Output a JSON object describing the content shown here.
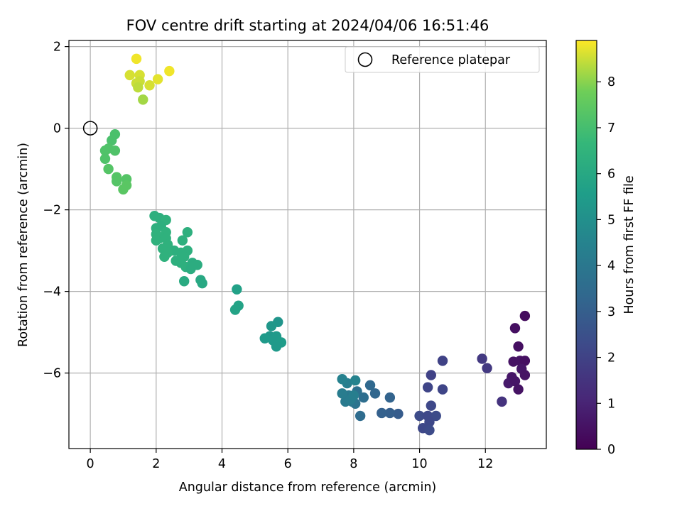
{
  "chart_data": {
    "type": "scatter",
    "title": "FOV centre drift starting at 2024/04/06 16:51:46",
    "xlabel": "Angular distance from reference (arcmin)",
    "ylabel": "Rotation from reference (arcmin)",
    "xlim": [
      -0.65,
      13.85
    ],
    "ylim": [
      -7.85,
      2.15
    ],
    "xticks": [
      0,
      2,
      4,
      6,
      8,
      10,
      12
    ],
    "yticks": [
      2,
      0,
      -2,
      -4,
      -6
    ],
    "grid": true,
    "legend": {
      "placement": "top-right",
      "entries": [
        "Reference platepar"
      ]
    },
    "reference_point": {
      "x": 0,
      "y": 0
    },
    "colorbar": {
      "label": "Hours from first FF file",
      "range": [
        0,
        8.9
      ],
      "ticks": [
        0,
        1,
        2,
        3,
        4,
        5,
        6,
        7,
        8
      ],
      "colormap": "viridis"
    },
    "series": [
      {
        "points": [
          {
            "x": 13.2,
            "y": -4.6,
            "h": 0.3
          },
          {
            "x": 12.9,
            "y": -4.9,
            "h": 0.4
          },
          {
            "x": 13.0,
            "y": -5.35,
            "h": 0.4
          },
          {
            "x": 12.85,
            "y": -5.72,
            "h": 0.5
          },
          {
            "x": 13.05,
            "y": -5.7,
            "h": 0.5
          },
          {
            "x": 13.2,
            "y": -5.7,
            "h": 0.4
          },
          {
            "x": 13.1,
            "y": -5.9,
            "h": 0.6
          },
          {
            "x": 13.2,
            "y": -6.05,
            "h": 0.5
          },
          {
            "x": 12.8,
            "y": -6.1,
            "h": 0.6
          },
          {
            "x": 12.7,
            "y": -6.25,
            "h": 0.7
          },
          {
            "x": 12.9,
            "y": -6.2,
            "h": 0.6
          },
          {
            "x": 13.0,
            "y": -6.4,
            "h": 0.5
          },
          {
            "x": 12.5,
            "y": -6.7,
            "h": 1.5
          },
          {
            "x": 11.9,
            "y": -5.65,
            "h": 1.7
          },
          {
            "x": 12.05,
            "y": -5.88,
            "h": 1.7
          },
          {
            "x": 10.7,
            "y": -5.7,
            "h": 2.0
          },
          {
            "x": 10.7,
            "y": -6.4,
            "h": 2.1
          },
          {
            "x": 10.35,
            "y": -6.05,
            "h": 2.0
          },
          {
            "x": 10.25,
            "y": -6.35,
            "h": 2.1
          },
          {
            "x": 10.35,
            "y": -6.8,
            "h": 2.2
          },
          {
            "x": 10.0,
            "y": -7.05,
            "h": 2.3
          },
          {
            "x": 10.25,
            "y": -7.05,
            "h": 2.2
          },
          {
            "x": 10.5,
            "y": -7.05,
            "h": 2.3
          },
          {
            "x": 10.3,
            "y": -7.2,
            "h": 2.2
          },
          {
            "x": 10.1,
            "y": -7.35,
            "h": 2.2
          },
          {
            "x": 10.3,
            "y": -7.4,
            "h": 2.3
          },
          {
            "x": 9.35,
            "y": -7.0,
            "h": 2.9
          },
          {
            "x": 9.1,
            "y": -6.98,
            "h": 3.0
          },
          {
            "x": 8.85,
            "y": -6.98,
            "h": 3.1
          },
          {
            "x": 9.1,
            "y": -6.6,
            "h": 3.2
          },
          {
            "x": 8.65,
            "y": -6.5,
            "h": 3.3
          },
          {
            "x": 8.5,
            "y": -6.3,
            "h": 3.4
          },
          {
            "x": 8.2,
            "y": -7.05,
            "h": 3.5
          },
          {
            "x": 8.3,
            "y": -6.6,
            "h": 3.6
          },
          {
            "x": 8.1,
            "y": -6.45,
            "h": 3.7
          },
          {
            "x": 8.05,
            "y": -6.75,
            "h": 3.8
          },
          {
            "x": 7.95,
            "y": -6.7,
            "h": 3.9
          },
          {
            "x": 7.85,
            "y": -6.55,
            "h": 4.0
          },
          {
            "x": 7.75,
            "y": -6.7,
            "h": 4.1
          },
          {
            "x": 7.65,
            "y": -6.5,
            "h": 4.2
          },
          {
            "x": 7.8,
            "y": -6.25,
            "h": 4.3
          },
          {
            "x": 7.65,
            "y": -6.15,
            "h": 4.4
          },
          {
            "x": 8.05,
            "y": -6.18,
            "h": 4.5
          },
          {
            "x": 7.9,
            "y": -6.65,
            "h": 4.2
          },
          {
            "x": 8.0,
            "y": -6.55,
            "h": 4.3
          },
          {
            "x": 5.7,
            "y": -4.75,
            "h": 5.2
          },
          {
            "x": 5.5,
            "y": -4.85,
            "h": 5.3
          },
          {
            "x": 5.45,
            "y": -5.1,
            "h": 5.3
          },
          {
            "x": 5.65,
            "y": -5.1,
            "h": 5.4
          },
          {
            "x": 5.55,
            "y": -5.2,
            "h": 5.4
          },
          {
            "x": 5.3,
            "y": -5.15,
            "h": 5.4
          },
          {
            "x": 5.8,
            "y": -5.25,
            "h": 5.5
          },
          {
            "x": 5.65,
            "y": -5.35,
            "h": 5.4
          },
          {
            "x": 4.45,
            "y": -3.95,
            "h": 5.7
          },
          {
            "x": 4.5,
            "y": -4.35,
            "h": 5.8
          },
          {
            "x": 4.4,
            "y": -4.45,
            "h": 5.8
          },
          {
            "x": 1.95,
            "y": -2.15,
            "h": 6.3
          },
          {
            "x": 2.1,
            "y": -2.2,
            "h": 6.3
          },
          {
            "x": 2.3,
            "y": -2.25,
            "h": 6.4
          },
          {
            "x": 2.0,
            "y": -2.45,
            "h": 6.3
          },
          {
            "x": 2.15,
            "y": -2.4,
            "h": 6.3
          },
          {
            "x": 2.3,
            "y": -2.55,
            "h": 6.4
          },
          {
            "x": 2.0,
            "y": -2.6,
            "h": 6.4
          },
          {
            "x": 2.1,
            "y": -2.7,
            "h": 6.4
          },
          {
            "x": 2.3,
            "y": -2.7,
            "h": 6.4
          },
          {
            "x": 2.35,
            "y": -2.85,
            "h": 6.4
          },
          {
            "x": 2.2,
            "y": -2.95,
            "h": 6.4
          },
          {
            "x": 2.0,
            "y": -2.75,
            "h": 6.4
          },
          {
            "x": 2.55,
            "y": -3.0,
            "h": 6.3
          },
          {
            "x": 2.35,
            "y": -3.05,
            "h": 6.4
          },
          {
            "x": 2.25,
            "y": -3.15,
            "h": 6.4
          },
          {
            "x": 2.8,
            "y": -2.75,
            "h": 6.3
          },
          {
            "x": 2.95,
            "y": -2.55,
            "h": 6.3
          },
          {
            "x": 2.75,
            "y": -3.05,
            "h": 6.3
          },
          {
            "x": 2.95,
            "y": -3.0,
            "h": 6.3
          },
          {
            "x": 2.85,
            "y": -3.15,
            "h": 6.3
          },
          {
            "x": 2.6,
            "y": -3.25,
            "h": 6.3
          },
          {
            "x": 2.75,
            "y": -3.3,
            "h": 6.3
          },
          {
            "x": 2.9,
            "y": -3.4,
            "h": 6.3
          },
          {
            "x": 3.05,
            "y": -3.45,
            "h": 6.2
          },
          {
            "x": 3.1,
            "y": -3.3,
            "h": 6.2
          },
          {
            "x": 3.25,
            "y": -3.35,
            "h": 6.2
          },
          {
            "x": 2.85,
            "y": -3.75,
            "h": 6.1
          },
          {
            "x": 3.35,
            "y": -3.72,
            "h": 6.0
          },
          {
            "x": 3.4,
            "y": -3.8,
            "h": 6.0
          },
          {
            "x": 0.75,
            "y": -0.15,
            "h": 7.1
          },
          {
            "x": 0.65,
            "y": -0.3,
            "h": 7.1
          },
          {
            "x": 0.55,
            "y": -0.5,
            "h": 7.2
          },
          {
            "x": 0.75,
            "y": -0.55,
            "h": 7.2
          },
          {
            "x": 0.45,
            "y": -0.55,
            "h": 7.2
          },
          {
            "x": 0.45,
            "y": -0.75,
            "h": 7.2
          },
          {
            "x": 0.55,
            "y": -1.0,
            "h": 7.3
          },
          {
            "x": 0.8,
            "y": -1.2,
            "h": 7.3
          },
          {
            "x": 1.1,
            "y": -1.25,
            "h": 7.3
          },
          {
            "x": 0.8,
            "y": -1.3,
            "h": 7.3
          },
          {
            "x": 1.1,
            "y": -1.4,
            "h": 7.4
          },
          {
            "x": 1.0,
            "y": -1.5,
            "h": 7.4
          },
          {
            "x": 1.4,
            "y": 1.7,
            "h": 8.8
          },
          {
            "x": 1.2,
            "y": 1.3,
            "h": 8.6
          },
          {
            "x": 1.5,
            "y": 1.3,
            "h": 8.6
          },
          {
            "x": 1.5,
            "y": 1.15,
            "h": 8.5
          },
          {
            "x": 1.4,
            "y": 1.1,
            "h": 8.5
          },
          {
            "x": 1.45,
            "y": 1.0,
            "h": 8.4
          },
          {
            "x": 2.05,
            "y": 1.2,
            "h": 8.7
          },
          {
            "x": 2.4,
            "y": 1.4,
            "h": 8.8
          },
          {
            "x": 1.8,
            "y": 1.05,
            "h": 8.6
          },
          {
            "x": 1.6,
            "y": 0.7,
            "h": 8.2
          }
        ]
      }
    ]
  }
}
